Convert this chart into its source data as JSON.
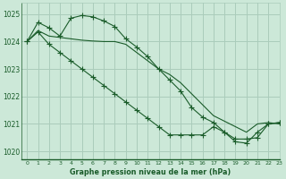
{
  "background_color": "#cce8d8",
  "grid_color": "#aaccbb",
  "line_color": "#1a5c2a",
  "title": "Graphe pression niveau de la mer (hPa)",
  "xlim": [
    -0.5,
    23
  ],
  "ylim": [
    1019.7,
    1025.4
  ],
  "yticks": [
    1020,
    1021,
    1022,
    1023,
    1024,
    1025
  ],
  "xticks": [
    0,
    1,
    2,
    3,
    4,
    5,
    6,
    7,
    8,
    9,
    10,
    11,
    12,
    13,
    14,
    15,
    16,
    17,
    18,
    19,
    20,
    21,
    22,
    23
  ],
  "series1_x": [
    0,
    1,
    2,
    3,
    4,
    5,
    6,
    7,
    8,
    9,
    10,
    11,
    12,
    13,
    14,
    15,
    16,
    17,
    18,
    19,
    20,
    21,
    22,
    23
  ],
  "series1_y": [
    1024.0,
    1024.4,
    1024.2,
    1024.15,
    1024.1,
    1024.05,
    1024.02,
    1024.0,
    1024.0,
    1023.9,
    1023.6,
    1023.3,
    1023.0,
    1022.8,
    1022.5,
    1022.1,
    1021.7,
    1021.3,
    1021.1,
    1020.9,
    1020.7,
    1021.0,
    1021.05,
    1021.0
  ],
  "series2_x": [
    0,
    1,
    2,
    3,
    4,
    5,
    6,
    7,
    8,
    9,
    10,
    11,
    12,
    13,
    14,
    15,
    16,
    17,
    18,
    19,
    20,
    21,
    22,
    23
  ],
  "series2_y": [
    1024.0,
    1024.7,
    1024.5,
    1024.2,
    1024.85,
    1024.95,
    1024.9,
    1024.75,
    1024.55,
    1024.1,
    1023.8,
    1023.45,
    1023.0,
    1022.6,
    1022.2,
    1021.6,
    1021.25,
    1021.05,
    1020.7,
    1020.35,
    1020.3,
    1020.7,
    1021.0,
    1021.05
  ],
  "series3_x": [
    0,
    1,
    2,
    3,
    4,
    5,
    6,
    7,
    8,
    9,
    10,
    11,
    12,
    13,
    14,
    15,
    16,
    17,
    18,
    19,
    20,
    21,
    22,
    23
  ],
  "series3_y": [
    1024.0,
    1024.35,
    1023.9,
    1023.6,
    1023.3,
    1023.0,
    1022.7,
    1022.4,
    1022.1,
    1021.8,
    1021.5,
    1021.2,
    1020.9,
    1020.6,
    1020.6,
    1020.6,
    1020.6,
    1020.9,
    1020.7,
    1020.45,
    1020.45,
    1020.5,
    1021.0,
    1021.05
  ]
}
